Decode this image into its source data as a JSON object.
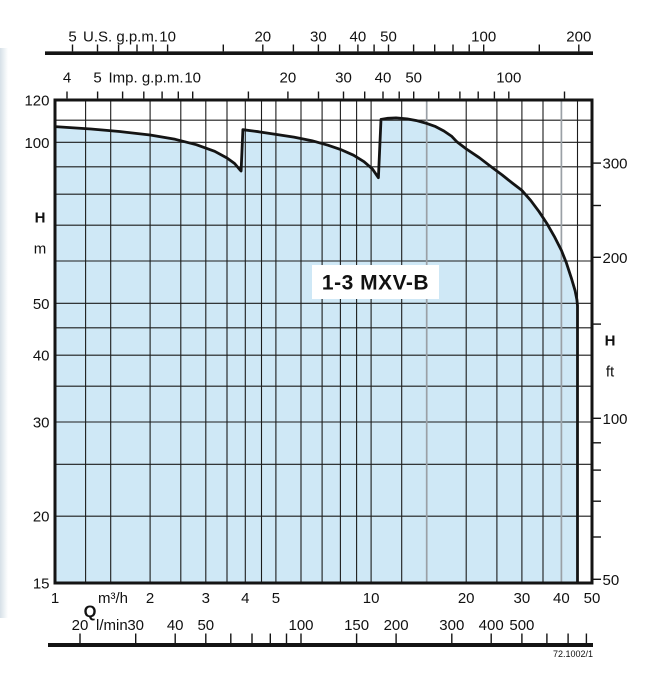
{
  "chart_data": {
    "type": "area",
    "title": "1-3 MXV-B",
    "drawing_number": "72.1002/1",
    "x_scale": {
      "type": "log",
      "unit": "m³/h",
      "min": 1,
      "max": 50
    },
    "y_scale": {
      "type": "log",
      "unit": "m",
      "min": 15,
      "max": 120
    },
    "axes": {
      "top_us_gpm": {
        "label": "U.S. g.p.m.",
        "labeled_ticks": [
          5,
          10,
          20,
          30,
          40,
          50,
          100,
          200
        ],
        "minor_ticks": [
          6,
          7,
          8,
          9,
          15,
          25,
          35,
          45,
          60,
          70,
          80,
          90,
          150
        ],
        "m3h_per_unit": 0.22712
      },
      "top_imp_gpm": {
        "label": "Imp. g.p.m.",
        "labeled_ticks": [
          4,
          5,
          10,
          20,
          30,
          40,
          50,
          100
        ],
        "minor_ticks": [
          6,
          7,
          8,
          9,
          15,
          25,
          35,
          45,
          60,
          70,
          80,
          90,
          150
        ],
        "m3h_per_unit": 0.272765
      },
      "left_head_m": {
        "symbol": "H",
        "unit": "m",
        "labeled_ticks": [
          120,
          100,
          50,
          40,
          30,
          20,
          15
        ]
      },
      "right_head_ft": {
        "symbol": "H",
        "unit": "ft",
        "labeled_ticks": [
          300,
          200,
          100,
          50
        ],
        "minor_ticks": [
          60,
          70,
          80,
          90,
          150,
          250
        ],
        "m_per_unit": 0.3048
      },
      "bottom_flow": {
        "symbol": "Q",
        "unit_primary": "m³/h",
        "unit_secondary": "l/min",
        "m3h_labeled_ticks": [
          1,
          2,
          3,
          4,
          5,
          10,
          20,
          30,
          40,
          50
        ],
        "lmin_labeled_ticks": [
          20,
          30,
          40,
          50,
          100,
          150,
          200,
          300,
          400,
          500
        ],
        "lmin_minor_ticks": [
          60,
          70,
          80,
          90,
          600,
          700,
          800
        ],
        "m3h_per_lmin": 0.06
      }
    },
    "grid": {
      "vertical_q": [
        1.25,
        1.5,
        2,
        2.5,
        3,
        3.5,
        4,
        4.5,
        5,
        6,
        7,
        8,
        9,
        10,
        12.5,
        20,
        25,
        30,
        35,
        45
      ],
      "vertical_q_gray": [
        15,
        40
      ],
      "horizontal_h": [
        20,
        25,
        30,
        35,
        40,
        45,
        50,
        60,
        70,
        80,
        90,
        100,
        110
      ]
    },
    "envelope": {
      "series_label": "1-3 MXV-B",
      "points_q_h": [
        [
          1,
          107
        ],
        [
          1.3,
          105.9
        ],
        [
          1.6,
          104.8
        ],
        [
          2,
          103.2
        ],
        [
          2.4,
          101.3
        ],
        [
          2.8,
          99
        ],
        [
          3.2,
          96.2
        ],
        [
          3.5,
          93.5
        ],
        [
          3.7,
          91.3
        ],
        [
          3.85,
          88.8
        ],
        [
          3.88,
          88.4
        ],
        [
          3.93,
          105.6
        ],
        [
          4.4,
          104.7
        ],
        [
          5,
          103.5
        ],
        [
          5.7,
          102.3
        ],
        [
          6.5,
          100.7
        ],
        [
          7.3,
          98.8
        ],
        [
          8,
          97
        ],
        [
          8.8,
          94.6
        ],
        [
          9.5,
          92
        ],
        [
          10.1,
          89.2
        ],
        [
          10.55,
          85.9
        ],
        [
          10.75,
          110.4
        ],
        [
          11.3,
          110.9
        ],
        [
          12,
          111.1
        ],
        [
          13,
          110.6
        ],
        [
          14,
          109.7
        ],
        [
          15,
          108.5
        ],
        [
          16,
          107
        ],
        [
          17,
          105
        ],
        [
          18,
          102.6
        ],
        [
          18.7,
          100.2
        ],
        [
          20,
          97.2
        ],
        [
          22,
          93.6
        ],
        [
          24,
          90
        ],
        [
          26,
          86.9
        ],
        [
          28,
          83.9
        ],
        [
          30,
          81.3
        ],
        [
          32,
          77.9
        ],
        [
          34,
          74.2
        ],
        [
          36,
          70.5
        ],
        [
          38,
          66.7
        ],
        [
          40,
          62.8
        ],
        [
          41.5,
          59.5
        ],
        [
          43,
          55.8
        ],
        [
          44.2,
          52.8
        ],
        [
          44.8,
          50.8
        ],
        [
          45,
          49.5
        ],
        [
          45,
          15
        ]
      ]
    },
    "colors": {
      "fill": "#cfe8f6",
      "curve": "#141414",
      "grid": "#1c1c1c",
      "gray_grid": "#9aa0a6",
      "frame": "#141414",
      "text": "#111111"
    }
  }
}
